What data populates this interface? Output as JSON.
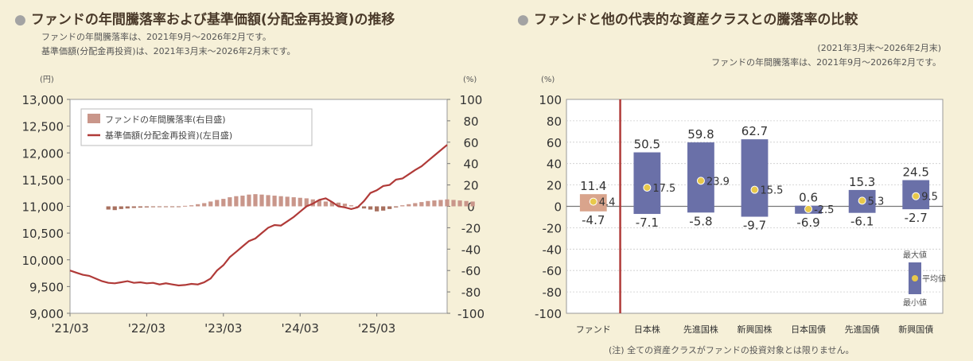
{
  "left": {
    "title": "ファンドの年間騰落率および基準価額(分配金再投資)の推移",
    "note1": "ファンドの年間騰落率は、2021年9月～2026年2月です。",
    "note2": "基準価額(分配金再投資)は、2021年3月末～2026年2月末です。"
  },
  "right": {
    "title": "ファンドと他の代表的な資産クラスとの騰落率の比較",
    "note1": "(2021年3月末～2026年2月末)",
    "note2": "ファンドの年間騰落率は、2021年9月～2026年2月です。",
    "footnote": "(注) 全ての資産クラスがファンドの投資対象とは限りません。"
  },
  "chart_data": [
    {
      "type": "line",
      "left_unit": "(円)",
      "right_unit": "(%)",
      "left_ylim": [
        9000,
        13000
      ],
      "left_yticks": [
        "9,000",
        "9,500",
        "10,000",
        "10,500",
        "11,000",
        "11,500",
        "12,000",
        "12,500",
        "13,000"
      ],
      "right_ylim": [
        -100,
        100
      ],
      "right_yticks": [
        "-100",
        "-80",
        "-60",
        "-40",
        "-20",
        "0",
        "20",
        "40",
        "60",
        "80",
        "100"
      ],
      "x_tick_labels": [
        "'21/03",
        "'22/03",
        "'23/03",
        "'24/03",
        "'25/03"
      ],
      "grid": false,
      "legend_position": "top-left",
      "colors": {
        "nav_line": "#b03a38",
        "return_bar": "#c9968a",
        "return_bar_dark": "#a8705f"
      },
      "series": [
        {
          "name": "基準価額(分配金再投資)(左目盛)",
          "axis": "left",
          "kind": "line",
          "values": [
            9800,
            9760,
            9720,
            9700,
            9650,
            9600,
            9570,
            9560,
            9580,
            9600,
            9570,
            9580,
            9560,
            9570,
            9540,
            9560,
            9540,
            9520,
            9530,
            9550,
            9540,
            9580,
            9650,
            9800,
            9900,
            10050,
            10150,
            10250,
            10350,
            10400,
            10500,
            10600,
            10650,
            10640,
            10720,
            10800,
            10900,
            11000,
            11050,
            11120,
            11150,
            11080,
            11000,
            10980,
            10950,
            10980,
            11100,
            11250,
            11300,
            11380,
            11400,
            11500,
            11520,
            11600,
            11680,
            11750,
            11850,
            11950,
            12050,
            12150
          ]
        },
        {
          "name": "ファンドの年間騰落率(右目盛)",
          "axis": "right",
          "kind": "bar",
          "values": [
            -3,
            -3.5,
            -2.5,
            -2,
            -1.5,
            -1.2,
            -1,
            -0.8,
            -0.6,
            -0.4,
            -0.3,
            -0.2,
            0.5,
            1,
            2,
            3,
            4.5,
            6,
            7,
            8.5,
            9.5,
            10,
            11,
            11.4,
            11,
            10.5,
            10,
            9.5,
            9,
            8.5,
            8,
            7.5,
            6.5,
            5.5,
            4.5,
            4,
            3.5,
            2.5,
            1,
            -1,
            -2,
            -3,
            -4.7,
            -4,
            -2.5,
            -1,
            1,
            2,
            3,
            4,
            5,
            5.5,
            6,
            6.5,
            6,
            5.5,
            5,
            4.5
          ]
        }
      ]
    },
    {
      "type": "bar",
      "unit": "(%)",
      "ylim": [
        -100,
        100
      ],
      "yticks": [
        "-100",
        "-80",
        "-60",
        "-40",
        "-20",
        "0",
        "20",
        "40",
        "60",
        "80",
        "100"
      ],
      "categories": [
        "ファンド",
        "日本株",
        "先進国株",
        "新興国株",
        "日本国債",
        "先進国債",
        "新興国債"
      ],
      "max": [
        11.4,
        50.5,
        59.8,
        62.7,
        0.6,
        15.3,
        24.5
      ],
      "avg": [
        4.4,
        17.5,
        23.9,
        15.5,
        -2.5,
        5.3,
        9.5
      ],
      "min": [
        -4.7,
        -7.1,
        -5.8,
        -9.7,
        -6.9,
        -6.1,
        -2.7
      ],
      "max_labels": [
        "11.4",
        "50.5",
        "59.8",
        "62.7",
        "0.6",
        "15.3",
        "24.5"
      ],
      "avg_labels": [
        "4.4",
        "17.5",
        "23.9",
        "15.5",
        "-2.5",
        "5.3",
        "9.5"
      ],
      "min_labels": [
        "-4.7",
        "-7.1",
        "-5.8",
        "-9.7",
        "-6.9",
        "-6.1",
        "-2.7"
      ],
      "legend": {
        "max": "最大値",
        "avg": "平均値",
        "min": "最小値"
      },
      "colors": {
        "fund_bar": "#d9a48c",
        "asset_bar": "#6a70a8",
        "avg_marker": "#e8c84a",
        "divider": "#b03a38"
      }
    }
  ]
}
